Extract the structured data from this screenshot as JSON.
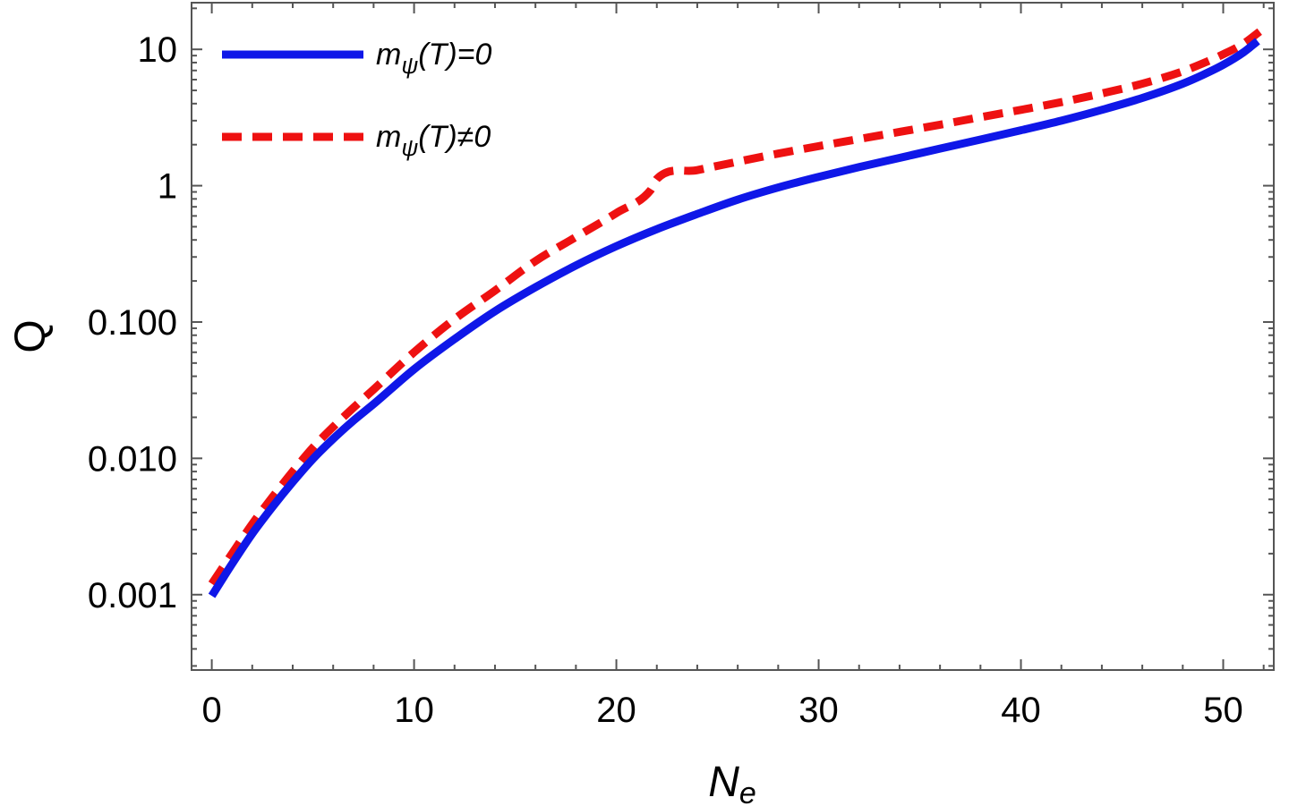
{
  "chart_data": {
    "type": "line",
    "title": "",
    "xlabel": "N",
    "xlabel_subscript": "e",
    "ylabel": "Q",
    "xscale": "linear",
    "yscale": "log",
    "xlim": [
      -1,
      52.5
    ],
    "ylim": [
      0.00028,
      22
    ],
    "xticks": [
      {
        "value": 0,
        "label": "0"
      },
      {
        "value": 10,
        "label": "10"
      },
      {
        "value": 20,
        "label": "20"
      },
      {
        "value": 30,
        "label": "30"
      },
      {
        "value": 40,
        "label": "40"
      },
      {
        "value": 50,
        "label": "50"
      }
    ],
    "yticks": [
      {
        "value": 0.001,
        "label": "0.001"
      },
      {
        "value": 0.01,
        "label": "0.010"
      },
      {
        "value": 0.1,
        "label": "0.100"
      },
      {
        "value": 1,
        "label": "1"
      },
      {
        "value": 10,
        "label": "10"
      }
    ],
    "legend_position": "top-left",
    "series": [
      {
        "name": "m_ψ(T)=0",
        "legend_main": "m",
        "legend_sub": "ψ",
        "legend_rest": "(T)=0",
        "color": "#0f17e8",
        "style": "solid",
        "x": [
          0,
          1,
          2,
          3,
          4,
          5,
          6,
          7,
          8,
          10,
          12,
          14,
          16,
          18,
          20,
          22,
          24,
          26,
          28,
          30,
          32,
          34,
          36,
          38,
          40,
          42,
          44,
          46,
          48,
          49,
          50,
          51,
          51.7
        ],
        "y": [
          0.00098,
          0.00168,
          0.0028,
          0.0044,
          0.0067,
          0.0099,
          0.0139,
          0.0189,
          0.025,
          0.045,
          0.075,
          0.12,
          0.18,
          0.26,
          0.36,
          0.48,
          0.62,
          0.79,
          0.97,
          1.16,
          1.37,
          1.6,
          1.87,
          2.18,
          2.55,
          3.0,
          3.6,
          4.4,
          5.6,
          6.5,
          7.7,
          9.5,
          11.5
        ]
      },
      {
        "name": "m_ψ(T)≠0",
        "legend_main": "m",
        "legend_sub": "ψ",
        "legend_rest": "(T)≠0",
        "color": "#ee1111",
        "style": "dashed",
        "x": [
          0,
          1,
          2,
          3,
          4,
          5,
          6,
          7,
          8,
          10,
          12,
          14,
          16,
          18,
          20,
          21.7,
          22,
          24,
          26,
          28,
          30,
          32,
          34,
          36,
          38,
          40,
          42,
          44,
          46,
          48,
          49,
          50,
          51,
          51.8
        ],
        "y": [
          0.0012,
          0.002,
          0.0033,
          0.0052,
          0.008,
          0.012,
          0.017,
          0.0235,
          0.032,
          0.06,
          0.105,
          0.17,
          0.28,
          0.42,
          0.63,
          0.93,
          1.12,
          1.3,
          1.5,
          1.72,
          1.95,
          2.2,
          2.48,
          2.8,
          3.18,
          3.6,
          4.1,
          4.75,
          5.6,
          6.9,
          7.9,
          9.2,
          11.0,
          13.5
        ]
      }
    ]
  }
}
